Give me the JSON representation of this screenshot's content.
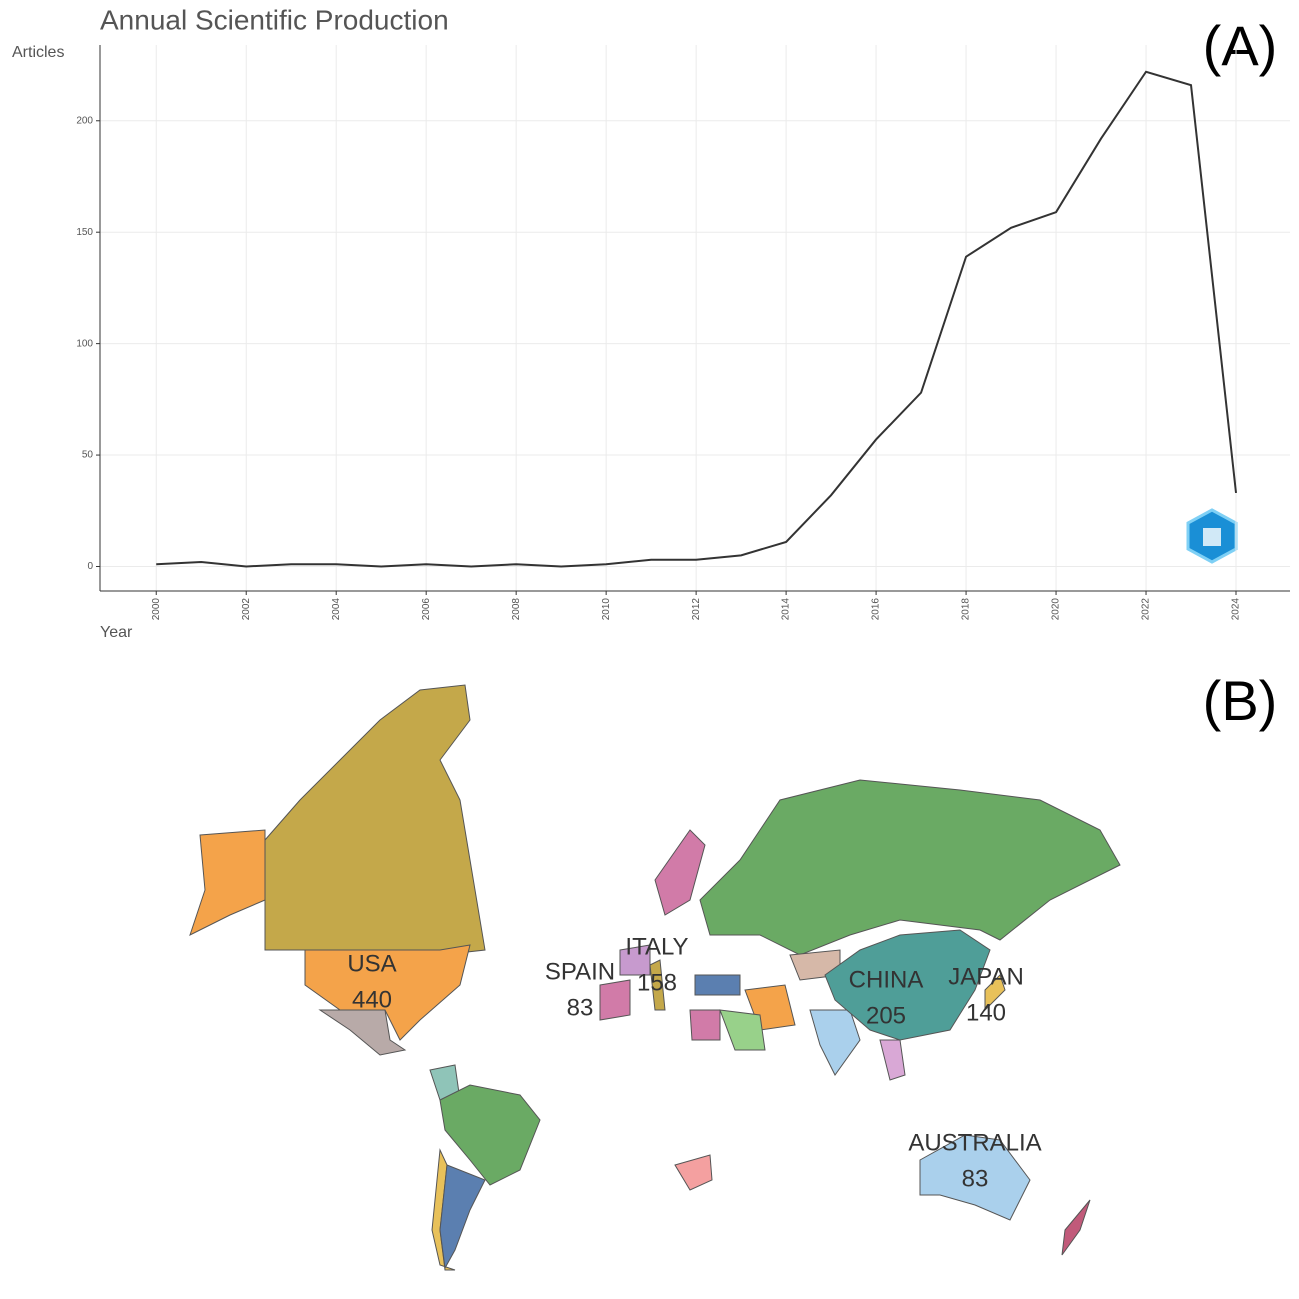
{
  "chart_data": [
    {
      "type": "line",
      "panel": "(A)",
      "title": "Annual Scientific Production",
      "ylabel": "Articles",
      "xlabel": "Year",
      "x": [
        2000,
        2001,
        2002,
        2003,
        2004,
        2005,
        2006,
        2007,
        2008,
        2009,
        2010,
        2011,
        2012,
        2013,
        2014,
        2015,
        2016,
        2017,
        2018,
        2019,
        2020,
        2021,
        2022,
        2023,
        2024
      ],
      "values": [
        1,
        2,
        0,
        1,
        1,
        0,
        1,
        0,
        1,
        0,
        1,
        3,
        3,
        5,
        11,
        32,
        57,
        78,
        139,
        152,
        159,
        192,
        222,
        216,
        33
      ],
      "color": "#333333",
      "xlim": [
        1998.75,
        2025.2
      ],
      "ylim": [
        -11,
        234
      ],
      "xticks": [
        2000,
        2002,
        2004,
        2006,
        2008,
        2010,
        2012,
        2014,
        2016,
        2018,
        2020,
        2022,
        2024
      ],
      "yticks": [
        0,
        50,
        100,
        150,
        200
      ],
      "grid": true
    },
    {
      "type": "map",
      "panel": "(B)",
      "regions": [
        {
          "name": "USA",
          "value": 440
        },
        {
          "name": "SPAIN",
          "value": 83
        },
        {
          "name": "ITALY",
          "value": 158
        },
        {
          "name": "CHINA",
          "value": 205
        },
        {
          "name": "JAPAN",
          "value": 140
        },
        {
          "name": "AUSTRALIA",
          "value": 83
        }
      ]
    }
  ]
}
